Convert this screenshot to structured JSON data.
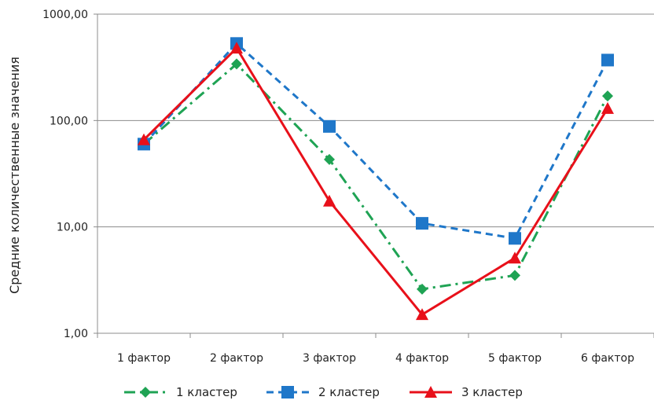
{
  "chart_data": {
    "type": "line",
    "ylabel": "Средние количественные значения",
    "yscale": "log",
    "ylim": [
      1,
      1000
    ],
    "yticks": [
      "1,00",
      "10,00",
      "100,00",
      "1000,00"
    ],
    "categories": [
      "1 фактор",
      "2 фактор",
      "3 фактор",
      "4 фактор",
      "5 фактор",
      "6 фактор"
    ],
    "grid": true,
    "legend_position": "bottom",
    "series": [
      {
        "name": "1 кластер",
        "values": [
          60,
          340,
          43,
          2.6,
          3.5,
          170
        ],
        "color": "#1fa354",
        "marker": "diamond",
        "line_style": "dash-dot"
      },
      {
        "name": "2 кластер",
        "values": [
          60,
          530,
          88,
          10.8,
          7.8,
          370
        ],
        "color": "#1f77c9",
        "marker": "square",
        "line_style": "dashed"
      },
      {
        "name": "3 кластер",
        "values": [
          66,
          480,
          17.5,
          1.5,
          5.1,
          130
        ],
        "color": "#e8101a",
        "marker": "triangle",
        "line_style": "solid"
      }
    ]
  }
}
